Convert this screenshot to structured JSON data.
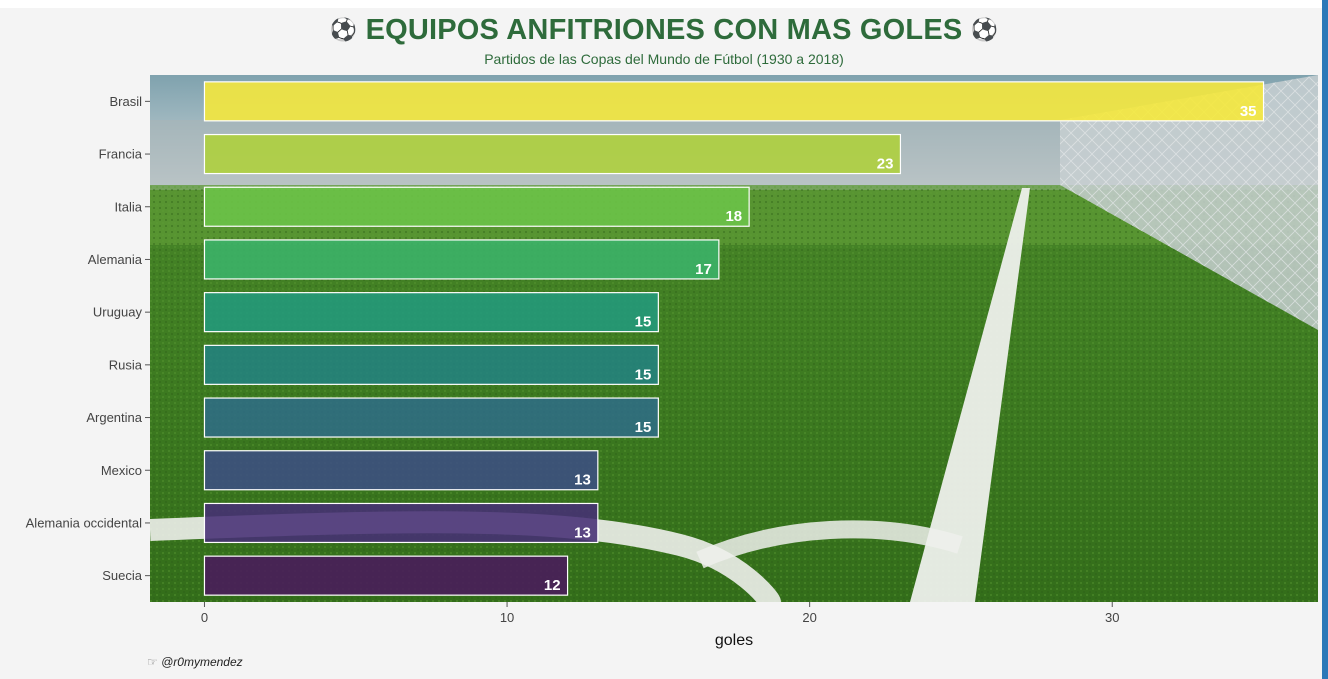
{
  "title": "EQUIPOS ANFITRIONES CON MAS GOLES",
  "title_icon": "soccer-ball-icon",
  "subtitle": "Partidos de las Copas del Mundo de Fútbol (1930 a 2018)",
  "credit": "@r0mymendez",
  "credit_icon": "pointing-hand-icon",
  "chart_data": {
    "type": "bar",
    "orientation": "horizontal",
    "categories": [
      "Brasil",
      "Francia",
      "Italia",
      "Alemania",
      "Uruguay",
      "Rusia",
      "Argentina",
      "Mexico",
      "Alemania occidental",
      "Suecia"
    ],
    "values": [
      35,
      23,
      18,
      17,
      15,
      15,
      15,
      13,
      13,
      12
    ],
    "colors": [
      "#f6e83a",
      "#aed03a",
      "#6cc449",
      "#3bb36a",
      "#229a7c",
      "#23827f",
      "#2f6c85",
      "#3c4e83",
      "#472f75",
      "#4a1a5c"
    ],
    "xlabel": "goles",
    "ylabel": "",
    "xlim": [
      -1.8,
      36.8
    ],
    "xticks": [
      0,
      10,
      20,
      30
    ],
    "data_labels": true,
    "background": "soccer-field-photo",
    "grid": false
  }
}
